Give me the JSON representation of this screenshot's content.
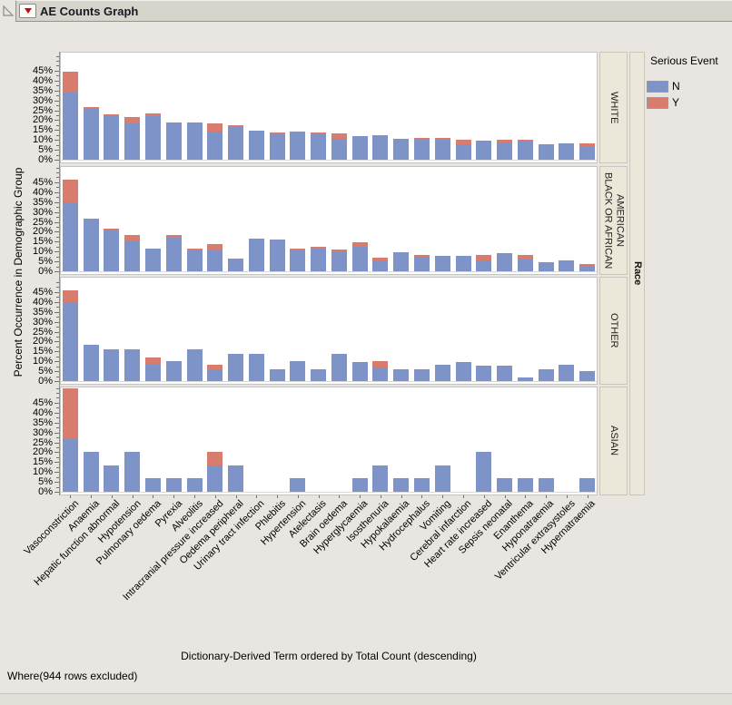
{
  "footnote": "Where(944 rows excluded)",
  "colors": {
    "bar_n": "#7e93c8",
    "bar_y": "#d87c6e",
    "strip_bg": "#ebe8da",
    "panel_bg": "#ffffff",
    "window_bg": "#e9e6e2"
  },
  "chart_data": {
    "type": "bar",
    "stacked": true,
    "title": "AE Counts Graph",
    "xlabel": "Dictionary-Derived Term ordered by Total Count (descending)",
    "ylabel": "Percent Occurrence in Demographic Group",
    "facet_label": "Race",
    "legend": {
      "title": "Serious Event",
      "entries": [
        {
          "label": "N",
          "color": "#7e93c8"
        },
        {
          "label": "Y",
          "color": "#d87c6e"
        }
      ]
    },
    "y_axis": {
      "tick_labels": [
        "0%",
        "5%",
        "10%",
        "15%",
        "20%",
        "25%",
        "30%",
        "35%",
        "40%",
        "45%"
      ],
      "tick_step": 5,
      "minor_step": 2.5,
      "max": 52.5
    },
    "categories": [
      "Vasoconstriction",
      "Anaemia",
      "Hepatic function abnormal",
      "Hypotension",
      "Pulmonary oedema",
      "Pyrexia",
      "Alveolitis",
      "Intracranial pressure increased",
      "Oedema peripheral",
      "Urinary tract infection",
      "Phlebitis",
      "Hypertension",
      "Atelectasis",
      "Brain oedema",
      "Hyperglycaemia",
      "Isosthenuria",
      "Hypokalaemia",
      "Hydrocephalus",
      "Vomiting",
      "Cerebral infarction",
      "Heart rate increased",
      "Sepsis neonatal",
      "Enanthema",
      "Hyponatraemia",
      "Ventricular extrasystoles",
      "Hypernatraemia"
    ],
    "panels": [
      {
        "race": "WHITE",
        "N": [
          34,
          26,
          22.3,
          18.5,
          22,
          18.7,
          18.7,
          14.3,
          17,
          14.6,
          13.5,
          14,
          13.4,
          10.4,
          12,
          12,
          10.5,
          10.7,
          10.3,
          8,
          9.8,
          8.5,
          9.4,
          8,
          8.2,
          7
        ],
        "Y": [
          10.5,
          0.8,
          0.7,
          3,
          1.2,
          0,
          0,
          3.9,
          0.3,
          0,
          0.4,
          0.3,
          0.4,
          2.8,
          0,
          0.6,
          0,
          0.5,
          0.6,
          2,
          0,
          1.4,
          0.5,
          0,
          0,
          1.1
        ]
      },
      {
        "race": "BLACK OR AFRICAN AMERICAN",
        "N": [
          35,
          26.5,
          21,
          15,
          11.5,
          17.5,
          10.5,
          11,
          6.5,
          16.5,
          16,
          10.5,
          11.5,
          10,
          12.5,
          5.5,
          9.5,
          7.5,
          8,
          8,
          5.5,
          9,
          6.5,
          4.5,
          5.5,
          2.5
        ],
        "Y": [
          11.5,
          0,
          0.8,
          3.2,
          0,
          0.8,
          1.2,
          2.8,
          0,
          0,
          0,
          0.8,
          0.9,
          1,
          2,
          1.5,
          0,
          1,
          0,
          0,
          3,
          0,
          2,
          0,
          0,
          1.2
        ]
      },
      {
        "race": "OTHER",
        "N": [
          40,
          18.5,
          16,
          16,
          8.5,
          10,
          16,
          6,
          14,
          14,
          6,
          10,
          6,
          13.7,
          9.5,
          7,
          6,
          6,
          8.5,
          9.5,
          8,
          8,
          2,
          6,
          8.5,
          5
        ],
        "Y": [
          6,
          0,
          0,
          0,
          3.5,
          0,
          0,
          2.5,
          0,
          0,
          0,
          0,
          0,
          0,
          0,
          3,
          0,
          0,
          0,
          0,
          0,
          0,
          0,
          0,
          0,
          0
        ]
      },
      {
        "race": "ASIAN",
        "N": [
          26.5,
          20,
          13.3,
          20,
          6.7,
          6.7,
          6.7,
          13.3,
          13.3,
          0,
          0,
          6.7,
          0,
          0,
          6.7,
          13.3,
          6.7,
          6.7,
          13.3,
          0,
          20,
          6.7,
          6.7,
          6.7,
          0,
          6.7
        ],
        "Y": [
          26,
          0,
          0,
          0,
          0,
          0,
          0,
          6.7,
          0,
          0,
          0,
          0,
          0,
          0,
          0,
          0,
          0,
          0,
          0,
          0,
          0,
          0,
          0,
          0,
          0,
          0
        ]
      }
    ]
  }
}
